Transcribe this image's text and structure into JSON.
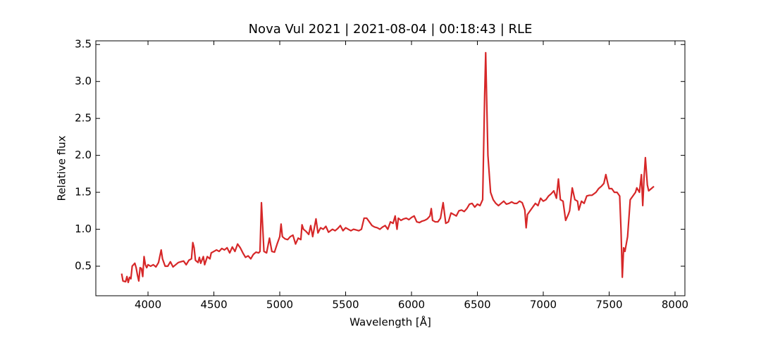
{
  "chart_data": {
    "type": "line",
    "title": "Nova Vul 2021 | 2021-08-04 | 00:18:43 | RLE",
    "x_label": "Wavelength [Å]",
    "y_label": "Relative flux",
    "xlim": [
      3604,
      8075
    ],
    "ylim": [
      0.1,
      3.55
    ],
    "xticks": [
      4000,
      4500,
      5000,
      5500,
      6000,
      6500,
      7000,
      7500,
      8000
    ],
    "yticks": [
      0.5,
      {
        "value": 1,
        "label": "1.0"
      },
      1.5,
      {
        "value": 2,
        "label": "2.0"
      },
      2.5,
      {
        "value": 3,
        "label": "3.0"
      },
      3.5
    ],
    "x": [
      3800,
      3810,
      3830,
      3840,
      3850,
      3860,
      3870,
      3880,
      3900,
      3910,
      3920,
      3930,
      3940,
      3950,
      3960,
      3970,
      3980,
      3990,
      4000,
      4020,
      4040,
      4060,
      4080,
      4100,
      4110,
      4130,
      4150,
      4170,
      4190,
      4210,
      4230,
      4250,
      4270,
      4290,
      4310,
      4330,
      4340,
      4350,
      4360,
      4380,
      4390,
      4400,
      4420,
      4430,
      4450,
      4470,
      4480,
      4500,
      4520,
      4540,
      4560,
      4580,
      4600,
      4620,
      4640,
      4660,
      4680,
      4700,
      4720,
      4740,
      4760,
      4780,
      4800,
      4820,
      4840,
      4850,
      4861,
      4870,
      4880,
      4900,
      4922,
      4940,
      4960,
      4980,
      5000,
      5010,
      5020,
      5040,
      5060,
      5080,
      5100,
      5120,
      5140,
      5160,
      5169,
      5180,
      5200,
      5220,
      5235,
      5250,
      5275,
      5290,
      5310,
      5330,
      5350,
      5370,
      5400,
      5420,
      5440,
      5460,
      5480,
      5500,
      5520,
      5540,
      5560,
      5580,
      5600,
      5620,
      5640,
      5660,
      5680,
      5700,
      5720,
      5740,
      5760,
      5780,
      5800,
      5820,
      5840,
      5860,
      5876,
      5890,
      5900,
      5920,
      5940,
      5960,
      5980,
      6000,
      6020,
      6040,
      6060,
      6080,
      6100,
      6120,
      6140,
      6150,
      6160,
      6180,
      6200,
      6220,
      6240,
      6250,
      6260,
      6280,
      6300,
      6320,
      6340,
      6360,
      6380,
      6400,
      6420,
      6440,
      6460,
      6480,
      6500,
      6520,
      6540,
      6555,
      6563,
      6570,
      6580,
      6600,
      6620,
      6640,
      6660,
      6680,
      6700,
      6720,
      6740,
      6760,
      6780,
      6800,
      6820,
      6840,
      6860,
      6870,
      6880,
      6900,
      6920,
      6940,
      6960,
      6980,
      7000,
      7020,
      7040,
      7060,
      7080,
      7100,
      7115,
      7130,
      7150,
      7170,
      7190,
      7200,
      7220,
      7240,
      7260,
      7270,
      7290,
      7310,
      7330,
      7350,
      7370,
      7400,
      7420,
      7440,
      7460,
      7475,
      7490,
      7500,
      7520,
      7540,
      7560,
      7580,
      7590,
      7600,
      7610,
      7620,
      7640,
      7660,
      7680,
      7700,
      7710,
      7730,
      7745,
      7755,
      7765,
      7775,
      7790,
      7800,
      7820,
      7840
    ],
    "series": [
      {
        "name": "Nova Vul 2021",
        "color": "#d62728",
        "values": [
          0.4,
          0.3,
          0.29,
          0.36,
          0.28,
          0.35,
          0.33,
          0.5,
          0.54,
          0.48,
          0.38,
          0.3,
          0.48,
          0.47,
          0.36,
          0.63,
          0.52,
          0.48,
          0.52,
          0.5,
          0.52,
          0.49,
          0.55,
          0.72,
          0.6,
          0.5,
          0.5,
          0.56,
          0.49,
          0.52,
          0.55,
          0.56,
          0.57,
          0.52,
          0.58,
          0.6,
          0.82,
          0.75,
          0.58,
          0.55,
          0.62,
          0.54,
          0.63,
          0.52,
          0.63,
          0.6,
          0.68,
          0.7,
          0.72,
          0.7,
          0.74,
          0.72,
          0.75,
          0.68,
          0.76,
          0.7,
          0.8,
          0.75,
          0.68,
          0.62,
          0.64,
          0.6,
          0.66,
          0.69,
          0.68,
          0.7,
          1.36,
          1.05,
          0.7,
          0.68,
          0.88,
          0.7,
          0.69,
          0.8,
          0.9,
          1.07,
          0.9,
          0.87,
          0.86,
          0.9,
          0.92,
          0.8,
          0.88,
          0.86,
          1.06,
          1.0,
          0.97,
          0.93,
          1.05,
          0.9,
          1.14,
          0.95,
          1.02,
          1.0,
          1.04,
          0.96,
          1.0,
          0.98,
          1.01,
          1.05,
          0.98,
          1.02,
          1.0,
          0.98,
          1.0,
          0.99,
          0.98,
          1.0,
          1.15,
          1.15,
          1.1,
          1.05,
          1.03,
          1.02,
          1.0,
          1.03,
          1.05,
          1.0,
          1.1,
          1.08,
          1.18,
          1.0,
          1.15,
          1.12,
          1.14,
          1.15,
          1.13,
          1.16,
          1.18,
          1.1,
          1.09,
          1.11,
          1.12,
          1.14,
          1.18,
          1.28,
          1.12,
          1.1,
          1.1,
          1.15,
          1.36,
          1.22,
          1.08,
          1.1,
          1.22,
          1.2,
          1.18,
          1.25,
          1.26,
          1.24,
          1.28,
          1.34,
          1.35,
          1.3,
          1.34,
          1.32,
          1.4,
          2.8,
          3.39,
          2.8,
          2.0,
          1.5,
          1.4,
          1.35,
          1.32,
          1.35,
          1.38,
          1.34,
          1.35,
          1.37,
          1.35,
          1.35,
          1.38,
          1.36,
          1.26,
          1.02,
          1.2,
          1.25,
          1.3,
          1.35,
          1.32,
          1.42,
          1.38,
          1.4,
          1.45,
          1.48,
          1.52,
          1.42,
          1.68,
          1.4,
          1.38,
          1.12,
          1.2,
          1.25,
          1.56,
          1.4,
          1.38,
          1.26,
          1.38,
          1.35,
          1.45,
          1.46,
          1.46,
          1.5,
          1.55,
          1.58,
          1.62,
          1.74,
          1.62,
          1.55,
          1.55,
          1.5,
          1.5,
          1.45,
          1.0,
          0.35,
          0.75,
          0.7,
          0.9,
          1.4,
          1.45,
          1.5,
          1.56,
          1.5,
          1.74,
          1.32,
          1.7,
          1.97,
          1.6,
          1.52,
          1.55,
          1.58
        ]
      }
    ]
  }
}
